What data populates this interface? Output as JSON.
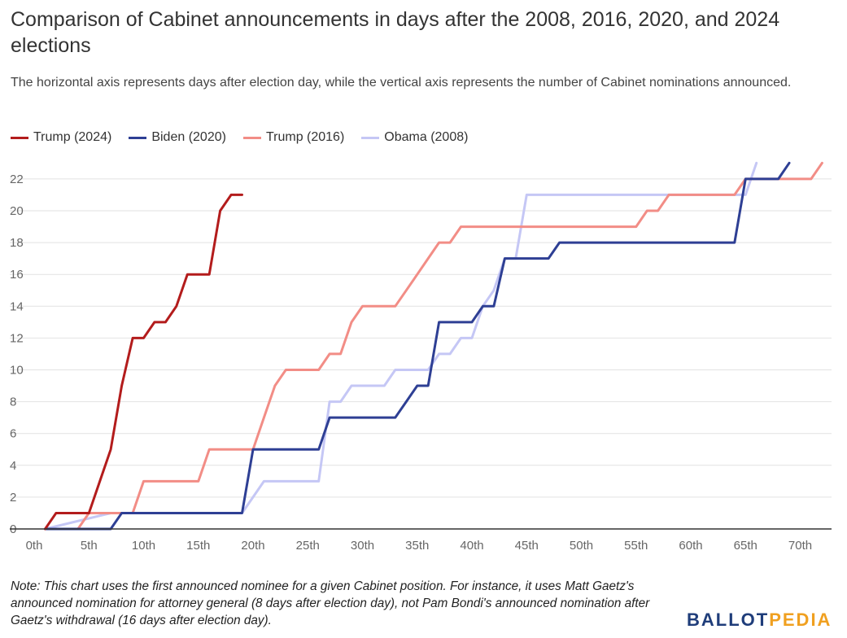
{
  "title": "Comparison of Cabinet announcements in days after the 2008, 2016, 2020, and 2024 elections",
  "subtitle": "The horizontal axis represents days after election day, while the vertical axis represents the number of Cabinet nominations announced.",
  "note": "Note: This chart uses the first announced nominee for a given Cabinet position. For instance, it uses Matt Gaetz's announced nomination for attorney general (8 days after election day), not Pam Bondi's announced nomination after Gaetz's withdrawal (16 days after election day).",
  "logo": {
    "part1": "BALLOT",
    "part2": "PEDIA"
  },
  "chart_data": {
    "type": "line",
    "xlim": [
      0,
      73
    ],
    "ylim": [
      0,
      23
    ],
    "x_ticks": [
      0,
      5,
      10,
      15,
      20,
      25,
      30,
      35,
      40,
      45,
      50,
      55,
      60,
      65,
      70
    ],
    "x_tick_labels": [
      "0th",
      "5th",
      "10th",
      "15th",
      "20th",
      "25th",
      "30th",
      "35th",
      "40th",
      "45th",
      "50th",
      "55th",
      "60th",
      "65th",
      "70th"
    ],
    "y_ticks": [
      0,
      2,
      4,
      6,
      8,
      10,
      12,
      14,
      16,
      18,
      20,
      22
    ],
    "y_tick_labels": [
      "0",
      "2",
      "4",
      "6",
      "8",
      "10",
      "12",
      "14",
      "16",
      "18",
      "20",
      "22"
    ],
    "grid": "horizontal",
    "legend_position": "top-left",
    "series": [
      {
        "name": "Obama (2008)",
        "color": "#c5c7f5",
        "x": [
          1,
          7,
          19,
          21,
          26,
          27,
          28,
          29,
          30,
          32,
          33,
          36,
          37,
          38,
          39,
          40,
          41,
          42,
          43,
          44,
          45,
          65,
          66
        ],
        "y": [
          0,
          1,
          1,
          3,
          3,
          8,
          8,
          9,
          9,
          9,
          10,
          10,
          11,
          11,
          12,
          12,
          14,
          15,
          17,
          17,
          21,
          21,
          23
        ]
      },
      {
        "name": "Trump (2016)",
        "color": "#f28d86",
        "x": [
          1,
          4,
          5,
          9,
          10,
          12,
          13,
          14,
          15,
          16,
          17,
          18,
          19,
          20,
          21,
          22,
          23,
          24,
          25,
          26,
          27,
          28,
          29,
          30,
          31,
          32,
          33,
          34,
          35,
          36,
          37,
          38,
          39,
          40,
          41,
          55,
          56,
          57,
          58,
          59,
          64,
          65,
          66,
          67,
          68,
          69,
          70,
          71,
          72
        ],
        "y": [
          0,
          0,
          1,
          1,
          3,
          3,
          3,
          3,
          3,
          5,
          5,
          5,
          5,
          5,
          7,
          9,
          10,
          10,
          10,
          10,
          11,
          11,
          13,
          14,
          14,
          14,
          14,
          15,
          16,
          17,
          18,
          18,
          19,
          19,
          19,
          19,
          20,
          20,
          21,
          21,
          21,
          22,
          22,
          22,
          22,
          22,
          22,
          22,
          23
        ]
      },
      {
        "name": "Biden (2020)",
        "color": "#2e3f94",
        "x": [
          1,
          7,
          8,
          9,
          19,
          20,
          25,
          26,
          27,
          33,
          34,
          35,
          36,
          37,
          38,
          39,
          40,
          41,
          42,
          43,
          44,
          45,
          46,
          47,
          48,
          64,
          65,
          68,
          69
        ],
        "y": [
          0,
          0,
          1,
          1,
          1,
          5,
          5,
          5,
          7,
          7,
          8,
          9,
          9,
          13,
          13,
          13,
          13,
          14,
          14,
          17,
          17,
          17,
          17,
          17,
          18,
          18,
          22,
          22,
          23
        ]
      },
      {
        "name": "Trump (2024)",
        "color": "#b31c1c",
        "x": [
          1,
          2,
          3,
          4,
          5,
          6,
          7,
          8,
          9,
          10,
          11,
          12,
          13,
          14,
          15,
          16,
          17,
          18,
          19
        ],
        "y": [
          0,
          1,
          1,
          1,
          1,
          3,
          5,
          9,
          12,
          12,
          13,
          13,
          14,
          16,
          16,
          16,
          20,
          21,
          21
        ]
      }
    ]
  }
}
